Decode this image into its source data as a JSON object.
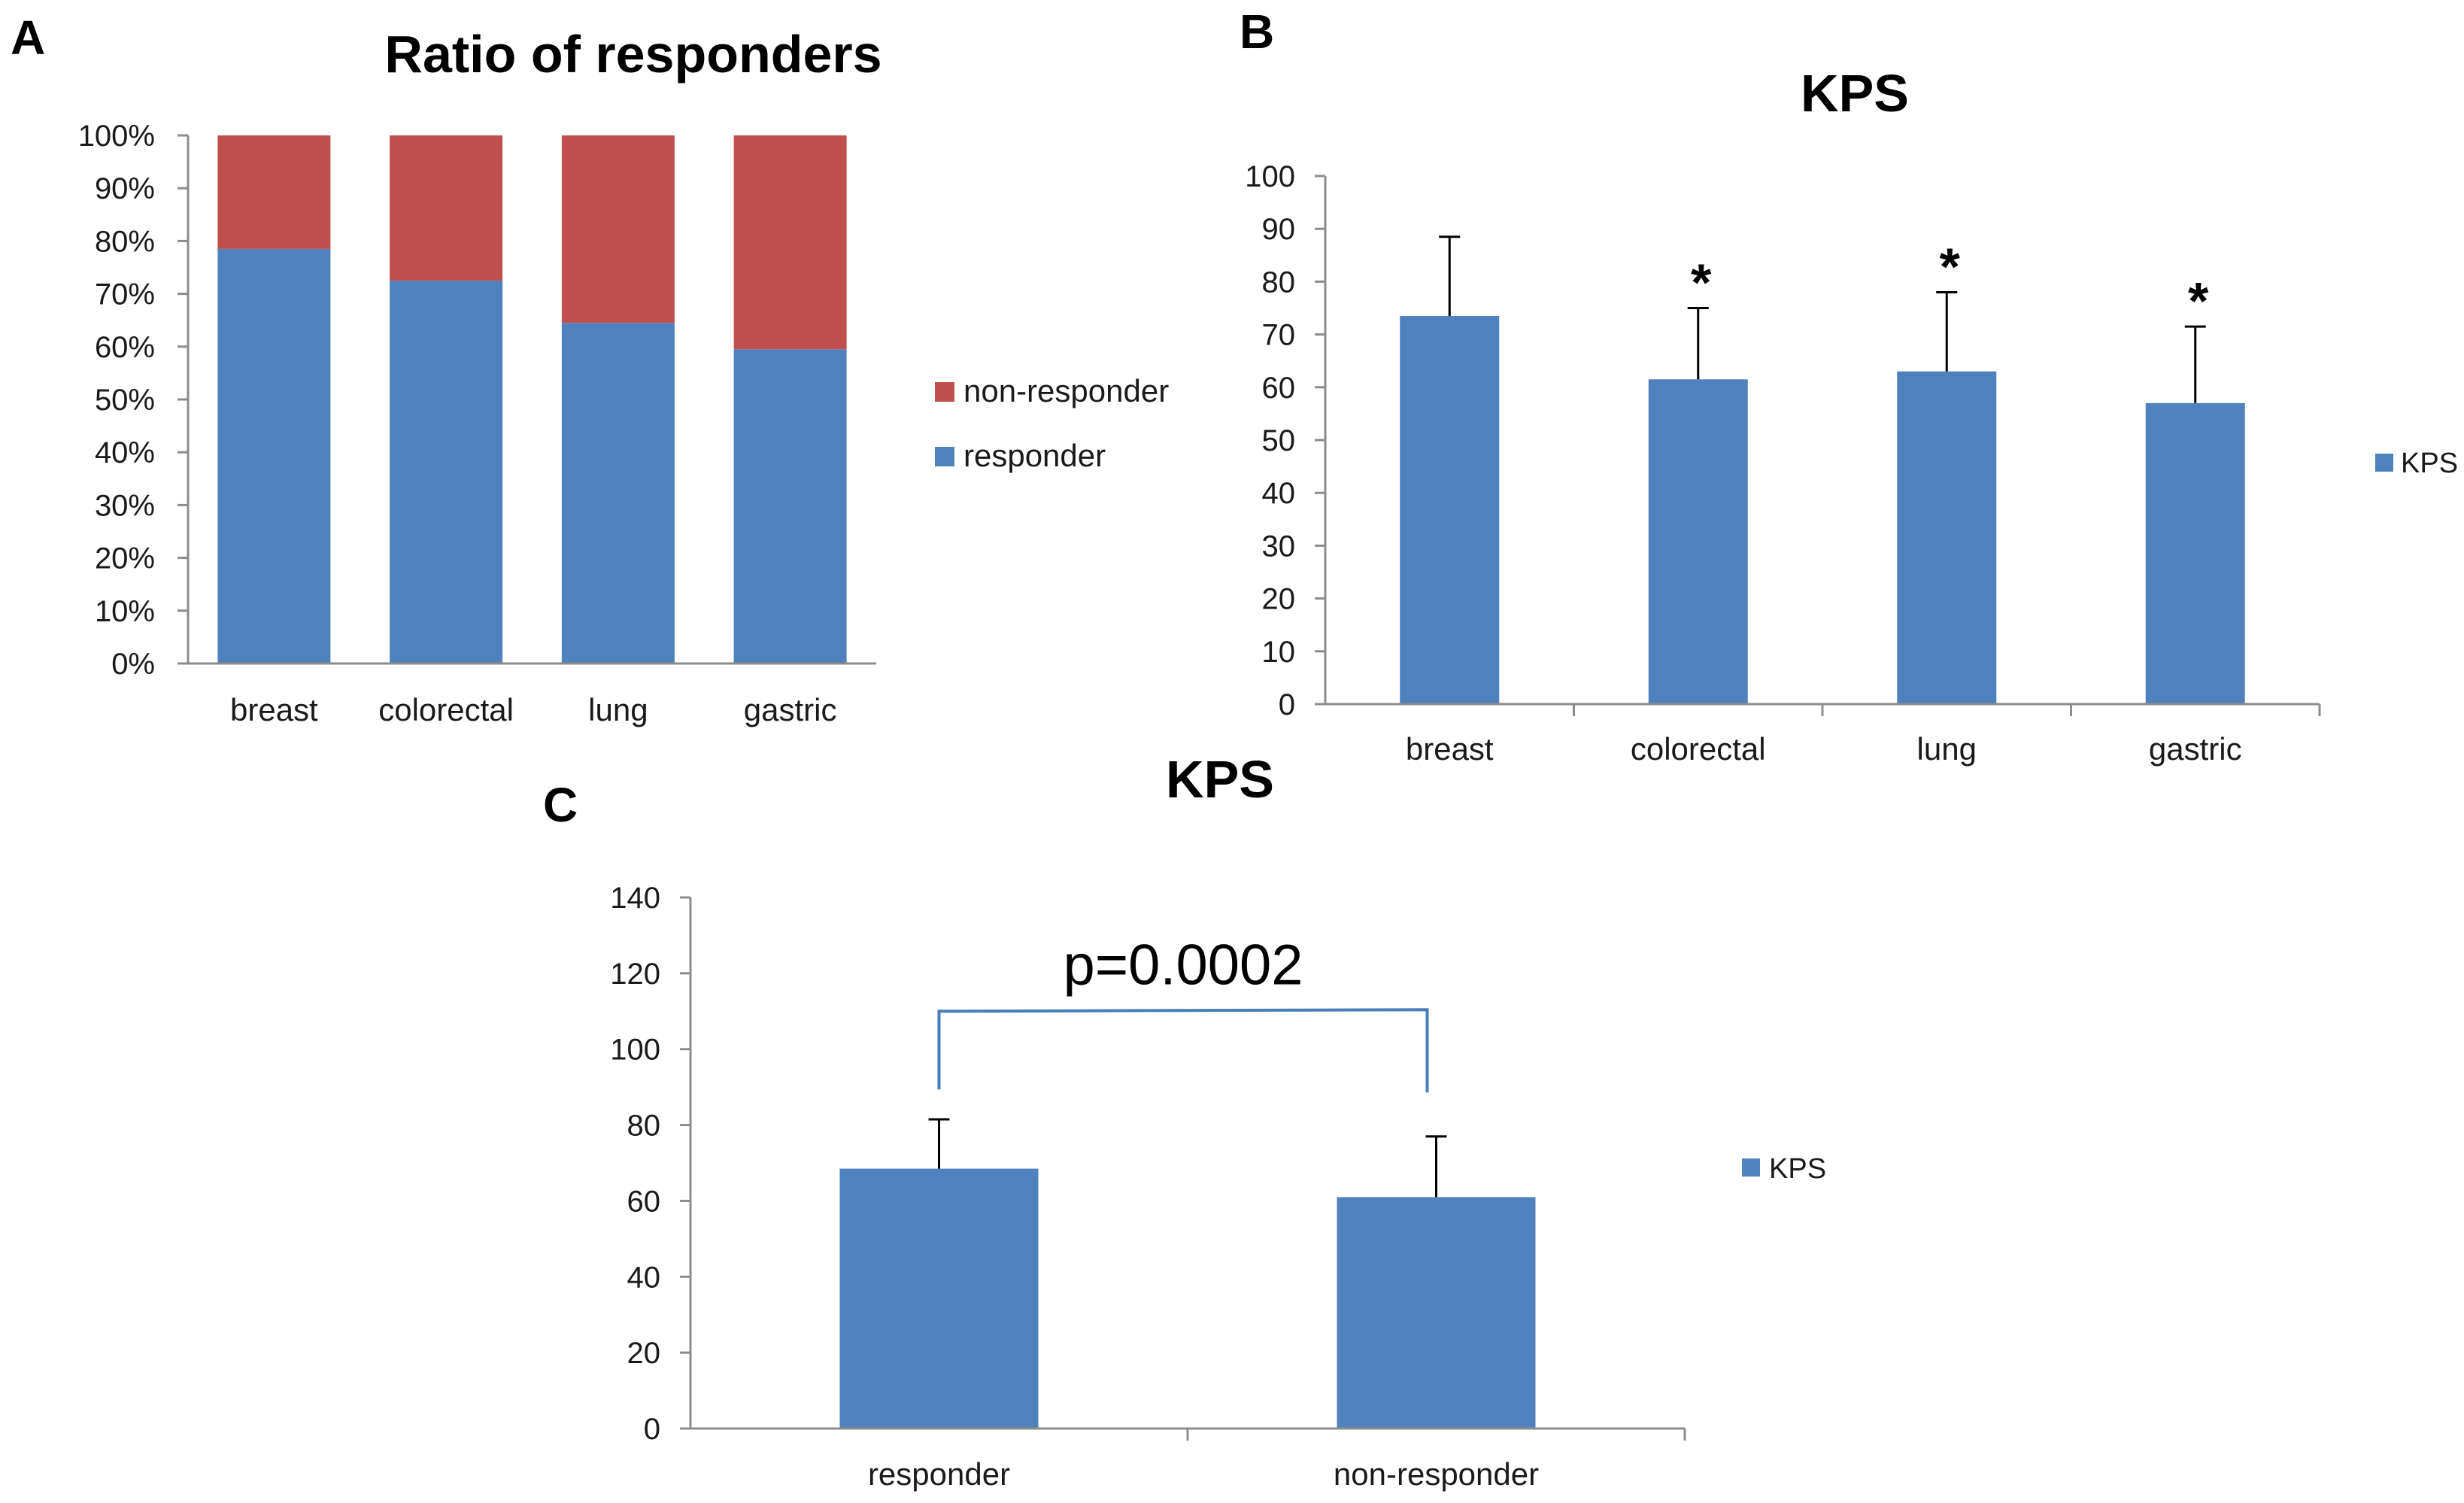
{
  "panels": {
    "a": {
      "letter": "A"
    },
    "b": {
      "letter": "B"
    },
    "c": {
      "letter": "C"
    }
  },
  "colors": {
    "responder": "#4f81bd",
    "non_responder": "#c0504d",
    "kps": "#4f81bd",
    "bracket": "#4a7ebb"
  },
  "chart_data": [
    {
      "id": "A",
      "type": "bar",
      "stacked": true,
      "title": "Ratio of responders",
      "categories": [
        "breast",
        "colorectal",
        "lung",
        "gastric"
      ],
      "series": [
        {
          "name": "responder",
          "values": [
            78.5,
            72.5,
            64.5,
            59.5
          ]
        },
        {
          "name": "non-responder",
          "values": [
            21.5,
            27.5,
            35.5,
            40.5
          ]
        }
      ],
      "legend_order": [
        "non-responder",
        "responder"
      ],
      "ylim": [
        0,
        100
      ],
      "yticks": [
        "0%",
        "10%",
        "20%",
        "30%",
        "40%",
        "50%",
        "60%",
        "70%",
        "80%",
        "90%",
        "100%"
      ],
      "xlabel": "",
      "ylabel": "",
      "grid": false,
      "legend_position": "right"
    },
    {
      "id": "B",
      "type": "bar",
      "title": "KPS",
      "categories": [
        "breast",
        "colorectal",
        "lung",
        "gastric"
      ],
      "series": [
        {
          "name": "KPS",
          "values": [
            73.5,
            61.5,
            63,
            57
          ],
          "error": [
            15,
            13.5,
            15,
            14.5
          ]
        }
      ],
      "annotations": [
        "",
        "*",
        "*",
        "*"
      ],
      "ylim": [
        0,
        100
      ],
      "yticks": [
        "0",
        "10",
        "20",
        "30",
        "40",
        "50",
        "60",
        "70",
        "80",
        "90",
        "100"
      ],
      "xlabel": "",
      "ylabel": "",
      "grid": false,
      "legend_position": "right"
    },
    {
      "id": "C",
      "type": "bar",
      "title": "KPS",
      "categories": [
        "responder",
        "non-responder"
      ],
      "series": [
        {
          "name": "KPS",
          "values": [
            68.5,
            61
          ],
          "error": [
            13,
            16
          ]
        }
      ],
      "significance": {
        "text": "p=0.0002",
        "level": 110
      },
      "ylim": [
        0,
        140
      ],
      "yticks": [
        "0",
        "20",
        "40",
        "60",
        "80",
        "100",
        "120",
        "140"
      ],
      "xlabel": "",
      "ylabel": "",
      "grid": false,
      "legend_position": "right"
    }
  ]
}
